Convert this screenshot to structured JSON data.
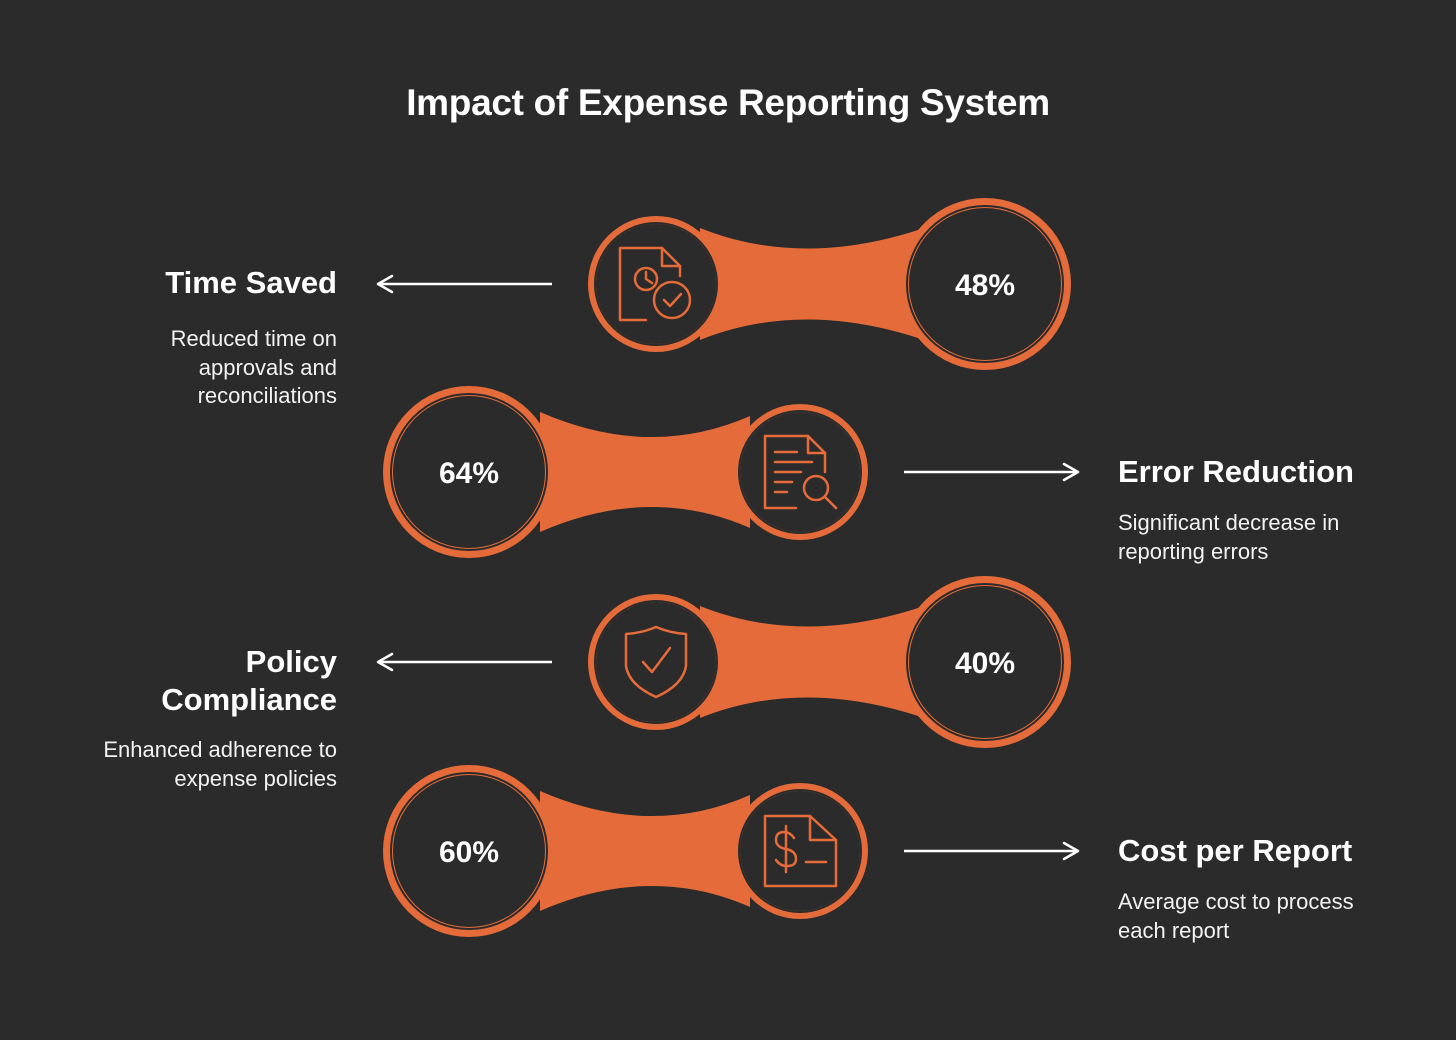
{
  "title": "Impact of Expense Reporting System",
  "colors": {
    "background": "#2b2b2b",
    "accent": "#e56c3a",
    "text": "#ffffff"
  },
  "items": [
    {
      "label": "Time Saved",
      "description": "Reduced time on approvals and reconciliations",
      "value": "48%",
      "icon": "clock-document-check-icon",
      "side": "left"
    },
    {
      "label": "Error Reduction",
      "description": "Significant decrease in reporting errors",
      "value": "64%",
      "icon": "document-search-icon",
      "side": "right"
    },
    {
      "label": "Policy Compliance",
      "description": "Enhanced adherence to expense policies",
      "value": "40%",
      "icon": "shield-check-icon",
      "side": "left"
    },
    {
      "label": "Cost per Report",
      "description": "Average cost to process each report",
      "value": "60%",
      "icon": "dollar-document-icon",
      "side": "right"
    }
  ]
}
